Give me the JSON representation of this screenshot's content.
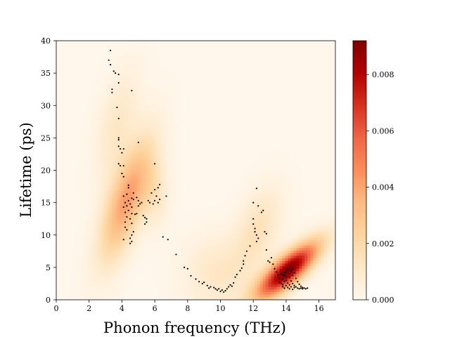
{
  "chart_data": {
    "type": "scatter",
    "title": "",
    "xlabel": "Phonon frequency (THz)",
    "ylabel": "Lifetime (ps)",
    "xlim": [
      0,
      17
    ],
    "ylim": [
      0,
      40
    ],
    "xticks": [
      0,
      2,
      4,
      6,
      8,
      10,
      12,
      14,
      16
    ],
    "yticks": [
      0,
      5,
      10,
      15,
      20,
      25,
      30,
      35,
      40
    ],
    "grid": false,
    "colormap": "OrRd",
    "colors": {
      "cmap_low": "#fff7ec",
      "cmap_mid": "#fc8d59",
      "cmap_high": "#7f0000",
      "point": "#000000"
    },
    "colorbar": {
      "range": [
        0,
        0.0092
      ],
      "ticks": [
        0.0,
        0.002,
        0.004,
        0.006,
        0.008
      ],
      "tick_labels": [
        "0.000",
        "0.002",
        "0.004",
        "0.006",
        "0.008"
      ]
    },
    "density_peaks": [
      {
        "x": 14.1,
        "y": 4.5,
        "density": 0.0092
      },
      {
        "x": 4.3,
        "y": 15.5,
        "density": 0.0042
      },
      {
        "x": 9.9,
        "y": 4.0,
        "density": 0.0012
      },
      {
        "x": 12.3,
        "y": 11.0,
        "density": 0.0015
      }
    ],
    "points": [
      [
        3.3,
        38.5
      ],
      [
        3.2,
        37.0
      ],
      [
        3.3,
        36.3
      ],
      [
        3.5,
        35.3
      ],
      [
        3.6,
        35.0
      ],
      [
        3.8,
        34.8
      ],
      [
        3.8,
        33.5
      ],
      [
        3.4,
        32.5
      ],
      [
        3.4,
        32.0
      ],
      [
        4.6,
        32.3
      ],
      [
        3.7,
        29.7
      ],
      [
        3.8,
        28.0
      ],
      [
        3.8,
        25.0
      ],
      [
        3.8,
        24.7
      ],
      [
        3.8,
        23.7
      ],
      [
        3.9,
        23.3
      ],
      [
        4.0,
        22.7
      ],
      [
        4.1,
        23.3
      ],
      [
        5.0,
        24.3
      ],
      [
        6.0,
        21.0
      ],
      [
        3.8,
        21.0
      ],
      [
        3.9,
        20.7
      ],
      [
        4.1,
        20.7
      ],
      [
        4.0,
        19.5
      ],
      [
        4.1,
        19.0
      ],
      [
        4.4,
        17.7
      ],
      [
        4.4,
        17.3
      ],
      [
        4.3,
        16.3
      ],
      [
        4.7,
        16.5
      ],
      [
        4.1,
        16.0
      ],
      [
        4.6,
        15.7
      ],
      [
        4.7,
        15.5
      ],
      [
        4.4,
        15.3
      ],
      [
        4.2,
        15.0
      ],
      [
        4.5,
        14.8
      ],
      [
        4.3,
        14.5
      ],
      [
        4.1,
        14.3
      ],
      [
        4.6,
        14.3
      ],
      [
        4.4,
        13.8
      ],
      [
        4.2,
        13.5
      ],
      [
        4.6,
        13.3
      ],
      [
        4.8,
        13.2
      ],
      [
        4.3,
        12.8
      ],
      [
        4.5,
        12.5
      ],
      [
        4.2,
        12.0
      ],
      [
        4.6,
        11.8
      ],
      [
        4.2,
        11.2
      ],
      [
        4.3,
        10.8
      ],
      [
        4.7,
        10.5
      ],
      [
        4.6,
        10.0
      ],
      [
        4.5,
        9.5
      ],
      [
        4.6,
        9.0
      ],
      [
        4.1,
        9.3
      ],
      [
        4.5,
        8.7
      ],
      [
        4.9,
        15.8
      ],
      [
        5.0,
        15.3
      ],
      [
        5.1,
        14.8
      ],
      [
        5.2,
        15.0
      ],
      [
        5.0,
        14.5
      ],
      [
        4.9,
        13.3
      ],
      [
        5.3,
        13.0
      ],
      [
        5.4,
        12.7
      ],
      [
        5.5,
        12.5
      ],
      [
        5.5,
        12.0
      ],
      [
        5.4,
        11.7
      ],
      [
        5.6,
        15.3
      ],
      [
        5.7,
        15.0
      ],
      [
        5.9,
        14.8
      ],
      [
        5.8,
        16.5
      ],
      [
        6.0,
        17.0
      ],
      [
        6.2,
        17.3
      ],
      [
        6.3,
        17.8
      ],
      [
        6.1,
        16.0
      ],
      [
        6.0,
        15.3
      ],
      [
        6.2,
        15.0
      ],
      [
        6.3,
        15.5
      ],
      [
        6.7,
        16.0
      ],
      [
        6.5,
        9.7
      ],
      [
        6.8,
        9.3
      ],
      [
        7.3,
        7.0
      ],
      [
        7.8,
        5.0
      ],
      [
        8.0,
        4.8
      ],
      [
        8.2,
        3.7
      ],
      [
        8.5,
        3.2
      ],
      [
        8.7,
        2.8
      ],
      [
        8.9,
        2.5
      ],
      [
        9.0,
        2.7
      ],
      [
        9.2,
        2.2
      ],
      [
        9.3,
        1.8
      ],
      [
        9.4,
        2.0
      ],
      [
        9.6,
        1.9
      ],
      [
        9.7,
        1.7
      ],
      [
        9.8,
        1.5
      ],
      [
        9.9,
        1.7
      ],
      [
        10.0,
        1.3
      ],
      [
        10.1,
        1.5
      ],
      [
        10.2,
        1.2
      ],
      [
        10.3,
        1.4
      ],
      [
        10.4,
        1.7
      ],
      [
        10.5,
        2.0
      ],
      [
        10.6,
        2.3
      ],
      [
        10.7,
        2.1
      ],
      [
        10.8,
        2.6
      ],
      [
        10.9,
        3.5
      ],
      [
        11.0,
        3.9
      ],
      [
        11.2,
        4.5
      ],
      [
        11.3,
        4.9
      ],
      [
        11.4,
        5.5
      ],
      [
        11.4,
        6.0
      ],
      [
        11.5,
        6.8
      ],
      [
        11.6,
        7.5
      ],
      [
        11.8,
        8.3
      ],
      [
        12.0,
        15.0
      ],
      [
        12.0,
        12.5
      ],
      [
        12.0,
        11.7
      ],
      [
        12.1,
        11.0
      ],
      [
        12.1,
        10.5
      ],
      [
        12.2,
        10.0
      ],
      [
        12.3,
        9.5
      ],
      [
        12.2,
        9.0
      ],
      [
        12.2,
        17.2
      ],
      [
        12.3,
        14.5
      ],
      [
        12.5,
        13.5
      ],
      [
        12.6,
        13.8
      ],
      [
        12.7,
        10.5
      ],
      [
        12.8,
        10.2
      ],
      [
        12.8,
        7.7
      ],
      [
        12.9,
        6.0
      ],
      [
        13.0,
        5.8
      ],
      [
        13.1,
        6.5
      ],
      [
        13.2,
        5.5
      ],
      [
        13.3,
        4.8
      ],
      [
        13.4,
        4.3
      ],
      [
        13.5,
        3.8
      ],
      [
        13.6,
        3.3
      ],
      [
        13.6,
        2.7
      ],
      [
        13.7,
        2.5
      ],
      [
        13.7,
        4.0
      ],
      [
        13.8,
        3.2
      ],
      [
        13.8,
        2.3
      ],
      [
        13.8,
        2.0
      ],
      [
        13.9,
        3.7
      ],
      [
        13.9,
        2.8
      ],
      [
        13.9,
        1.8
      ],
      [
        14.0,
        4.3
      ],
      [
        14.0,
        3.0
      ],
      [
        14.0,
        2.2
      ],
      [
        14.1,
        2.6
      ],
      [
        14.1,
        1.9
      ],
      [
        14.2,
        3.5
      ],
      [
        14.2,
        2.3
      ],
      [
        14.2,
        1.7
      ],
      [
        14.3,
        4.5
      ],
      [
        14.3,
        2.9
      ],
      [
        14.3,
        2.0
      ],
      [
        14.4,
        3.8
      ],
      [
        14.4,
        2.5
      ],
      [
        14.4,
        1.6
      ],
      [
        14.5,
        4.2
      ],
      [
        14.5,
        2.2
      ],
      [
        14.5,
        1.9
      ],
      [
        14.6,
        3.3
      ],
      [
        14.6,
        2.0
      ],
      [
        14.7,
        2.8
      ],
      [
        14.7,
        1.8
      ],
      [
        14.8,
        2.4
      ],
      [
        14.8,
        1.7
      ],
      [
        14.9,
        2.1
      ],
      [
        14.9,
        1.8
      ],
      [
        15.0,
        1.9
      ],
      [
        15.0,
        1.7
      ],
      [
        15.1,
        1.8
      ],
      [
        15.2,
        1.7
      ],
      [
        15.3,
        1.8
      ],
      [
        14.1,
        4.7
      ],
      [
        14.0,
        3.5
      ],
      [
        13.9,
        4.2
      ],
      [
        14.2,
        4.0
      ],
      [
        14.4,
        4.8
      ],
      [
        13.8,
        3.8
      ]
    ]
  }
}
